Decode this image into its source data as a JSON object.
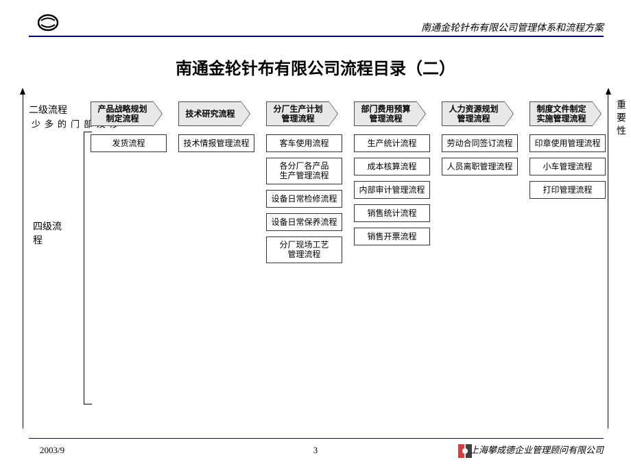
{
  "header": {
    "company_line": "南通金轮针布有限公司管理体系和流程方案"
  },
  "title": "南通金轮针布有限公司流程目录（二）",
  "left_axis": {
    "level2": "二级流程",
    "depts": "涉及部门的多少",
    "level4": "四级流程"
  },
  "right_axis": "重要性",
  "header_boxes": [
    "产品战略规划\n制定流程",
    "技术研究流程",
    "分厂生产计划\n管理流程",
    "部门费用预算\n管理流程",
    "人力资源规划\n管理流程",
    "制度文件制定\n实施管理流程"
  ],
  "columns": [
    [
      "发货流程"
    ],
    [
      "技术情报管理流程"
    ],
    [
      "客车使用流程",
      "各分厂各产品\n生产管理流程",
      "设备日常检修流程",
      "设备日常保养流程",
      "分厂现场工艺\n管理流程"
    ],
    [
      "生产统计流程",
      "成本核算流程",
      "内部审计管理流程",
      "销售统计流程",
      "销售开票流程"
    ],
    [
      "劳动合同签订流程",
      "人员离职管理流程"
    ],
    [
      "印章使用管理流程",
      "小车管理流程",
      "打印管理流程"
    ]
  ],
  "footer": {
    "date": "2003/9",
    "page": "3",
    "company": "上海攀成德企业管理顾问有限公司"
  },
  "colors": {
    "header_line": "#000080",
    "box_fill": "#e8e8e8",
    "box_border": "#4d4d4d"
  }
}
